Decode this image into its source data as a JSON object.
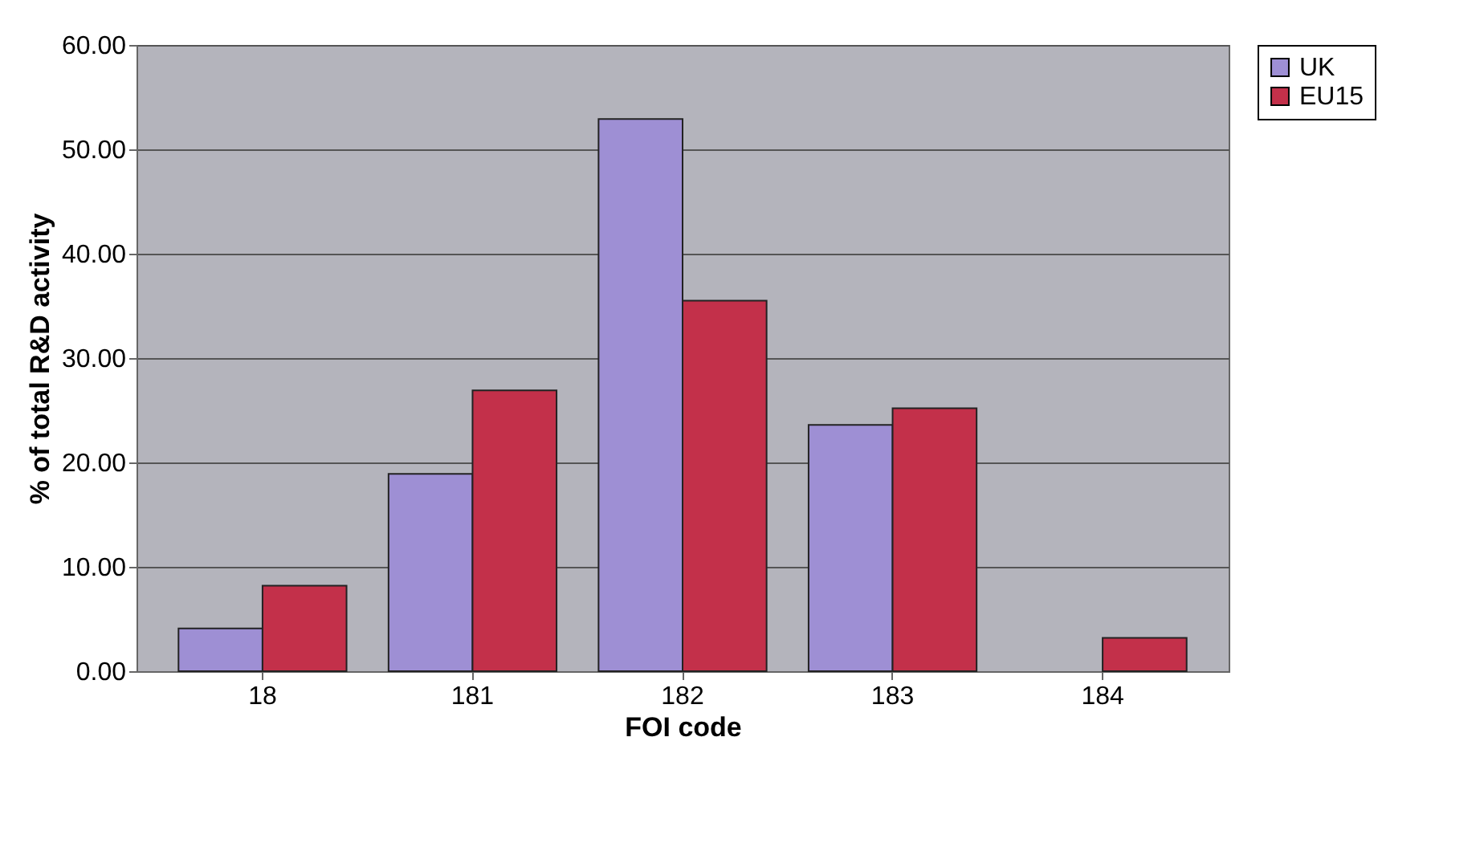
{
  "chart_data": {
    "type": "bar",
    "xlabel": "FOI code",
    "ylabel": "% of total R&D activity",
    "categories": [
      "18",
      "181",
      "182",
      "183",
      "184"
    ],
    "series": [
      {
        "name": "UK",
        "color": "#9e8fd4",
        "values": [
          4.1,
          18.9,
          52.9,
          23.6,
          null
        ]
      },
      {
        "name": "EU15",
        "color": "#c3304a",
        "values": [
          8.2,
          26.9,
          35.5,
          25.2,
          3.2
        ]
      }
    ],
    "ylim": [
      0,
      60
    ],
    "yticks": [
      {
        "value": 0,
        "label": "0.00"
      },
      {
        "value": 10,
        "label": "10.00"
      },
      {
        "value": 20,
        "label": "20.00"
      },
      {
        "value": 30,
        "label": "30.00"
      },
      {
        "value": 40,
        "label": "40.00"
      },
      {
        "value": 50,
        "label": "50.00"
      },
      {
        "value": 60,
        "label": "60.00"
      }
    ],
    "grid": "y",
    "legend": "right"
  }
}
